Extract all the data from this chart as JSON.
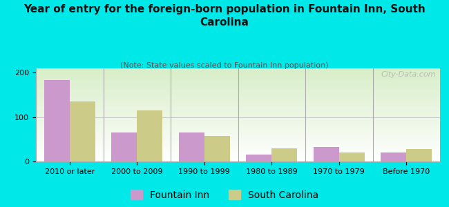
{
  "title": "Year of entry for the foreign-born population in Fountain Inn, South\nCarolina",
  "subtitle": "(Note: State values scaled to Fountain Inn population)",
  "categories": [
    "2010 or later",
    "2000 to 2009",
    "1990 to 1999",
    "1980 to 1989",
    "1970 to 1979",
    "Before 1970"
  ],
  "fountain_inn": [
    183,
    65,
    65,
    15,
    33,
    20
  ],
  "south_carolina": [
    135,
    115,
    57,
    30,
    20,
    28
  ],
  "fountain_inn_color": "#cc99cc",
  "south_carolina_color": "#cccc88",
  "background_outer": "#00e8e8",
  "background_inner_top": "#d8eec8",
  "background_inner_bottom": "#ffffff",
  "ylim": [
    0,
    210
  ],
  "yticks": [
    0,
    100,
    200
  ],
  "watermark": "City-Data.com",
  "bar_width": 0.38,
  "title_fontsize": 11,
  "subtitle_fontsize": 8,
  "legend_fontsize": 10,
  "tick_fontsize": 8
}
